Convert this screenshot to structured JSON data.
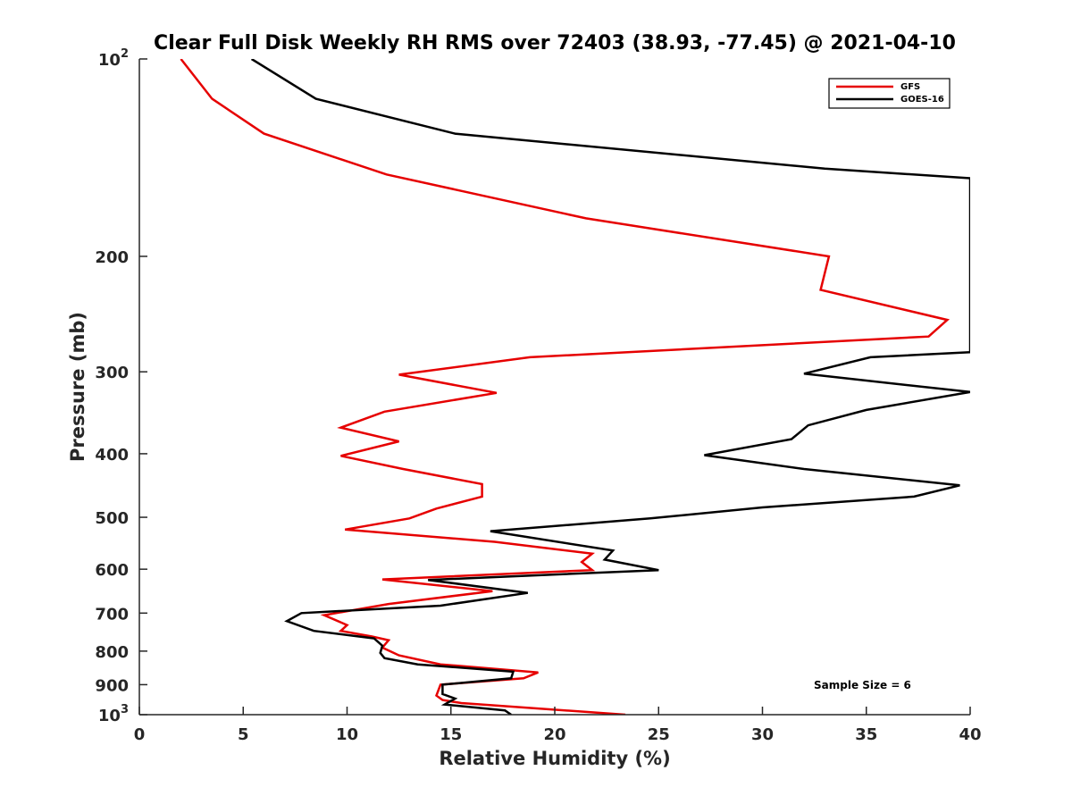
{
  "chart_data": {
    "type": "line",
    "title": "Clear Full Disk Weekly RH RMS over 72403 (38.93, -77.45) @ 2021-04-10",
    "xlabel": "Relative Humidity (%)",
    "ylabel": "Pressure (mb)",
    "xlim": [
      0,
      40
    ],
    "ylim": [
      100,
      1000
    ],
    "y_scale": "log",
    "y_reversed": true,
    "grid": false,
    "legend_position": "top-right",
    "x_ticks": [
      0,
      5,
      10,
      15,
      20,
      25,
      30,
      35,
      40
    ],
    "x_tick_labels": [
      "0",
      "5",
      "10",
      "15",
      "20",
      "25",
      "30",
      "35",
      "40"
    ],
    "y_ticks": [
      100,
      200,
      300,
      400,
      500,
      600,
      700,
      800,
      900,
      1000
    ],
    "y_tick_labels": [
      {
        "base": "10",
        "exp": "2"
      },
      {
        "base": "200",
        "exp": ""
      },
      {
        "base": "300",
        "exp": ""
      },
      {
        "base": "400",
        "exp": ""
      },
      {
        "base": "500",
        "exp": ""
      },
      {
        "base": "600",
        "exp": ""
      },
      {
        "base": "700",
        "exp": ""
      },
      {
        "base": "800",
        "exp": ""
      },
      {
        "base": "900",
        "exp": ""
      },
      {
        "base": "10",
        "exp": "3"
      }
    ],
    "annotation": "Sample Size = 6",
    "series": [
      {
        "name": "GFS",
        "color": "#e60000",
        "points": [
          {
            "x": 2.0,
            "y": 100
          },
          {
            "x": 3.5,
            "y": 115
          },
          {
            "x": 6.0,
            "y": 130
          },
          {
            "x": 11.9,
            "y": 150
          },
          {
            "x": 21.5,
            "y": 175
          },
          {
            "x": 33.2,
            "y": 200
          },
          {
            "x": 32.8,
            "y": 225
          },
          {
            "x": 38.9,
            "y": 250
          },
          {
            "x": 38.0,
            "y": 265
          },
          {
            "x": 18.8,
            "y": 285
          },
          {
            "x": 12.5,
            "y": 303
          },
          {
            "x": 17.2,
            "y": 323
          },
          {
            "x": 11.8,
            "y": 345
          },
          {
            "x": 9.7,
            "y": 365
          },
          {
            "x": 12.5,
            "y": 383
          },
          {
            "x": 9.7,
            "y": 403
          },
          {
            "x": 12.7,
            "y": 422
          },
          {
            "x": 16.5,
            "y": 445
          },
          {
            "x": 16.5,
            "y": 465
          },
          {
            "x": 14.3,
            "y": 485
          },
          {
            "x": 13.0,
            "y": 502
          },
          {
            "x": 9.9,
            "y": 522
          },
          {
            "x": 17.1,
            "y": 545
          },
          {
            "x": 21.8,
            "y": 568
          },
          {
            "x": 21.3,
            "y": 585
          },
          {
            "x": 21.8,
            "y": 602
          },
          {
            "x": 11.7,
            "y": 622
          },
          {
            "x": 17.0,
            "y": 648
          },
          {
            "x": 12.0,
            "y": 678
          },
          {
            "x": 8.9,
            "y": 705
          },
          {
            "x": 10.0,
            "y": 730
          },
          {
            "x": 9.7,
            "y": 745
          },
          {
            "x": 11.2,
            "y": 760
          },
          {
            "x": 12.0,
            "y": 770
          },
          {
            "x": 11.7,
            "y": 790
          },
          {
            "x": 12.5,
            "y": 812
          },
          {
            "x": 14.5,
            "y": 838
          },
          {
            "x": 19.2,
            "y": 862
          },
          {
            "x": 18.5,
            "y": 880
          },
          {
            "x": 14.5,
            "y": 900
          },
          {
            "x": 14.3,
            "y": 935
          },
          {
            "x": 14.6,
            "y": 950
          },
          {
            "x": 15.5,
            "y": 960
          },
          {
            "x": 23.4,
            "y": 1000
          }
        ]
      },
      {
        "name": "GOES-16",
        "color": "#000000",
        "points": [
          {
            "x": 5.4,
            "y": 100
          },
          {
            "x": 8.5,
            "y": 115
          },
          {
            "x": 15.2,
            "y": 130
          },
          {
            "x": 33.0,
            "y": 147
          },
          {
            "x": 40.0,
            "y": 152
          },
          {
            "x": 40.0,
            "y": 280
          },
          {
            "x": 35.2,
            "y": 285
          },
          {
            "x": 32.0,
            "y": 302
          },
          {
            "x": 40.0,
            "y": 322
          },
          {
            "x": 35.0,
            "y": 343
          },
          {
            "x": 32.2,
            "y": 362
          },
          {
            "x": 31.4,
            "y": 380
          },
          {
            "x": 27.2,
            "y": 402
          },
          {
            "x": 32.0,
            "y": 422
          },
          {
            "x": 39.5,
            "y": 447
          },
          {
            "x": 37.3,
            "y": 465
          },
          {
            "x": 30.0,
            "y": 483
          },
          {
            "x": 24.6,
            "y": 502
          },
          {
            "x": 16.9,
            "y": 525
          },
          {
            "x": 22.8,
            "y": 562
          },
          {
            "x": 22.4,
            "y": 580
          },
          {
            "x": 25.0,
            "y": 602
          },
          {
            "x": 13.9,
            "y": 623
          },
          {
            "x": 18.7,
            "y": 652
          },
          {
            "x": 14.5,
            "y": 682
          },
          {
            "x": 7.8,
            "y": 700
          },
          {
            "x": 7.1,
            "y": 720
          },
          {
            "x": 8.4,
            "y": 745
          },
          {
            "x": 11.3,
            "y": 765
          },
          {
            "x": 11.7,
            "y": 785
          },
          {
            "x": 11.6,
            "y": 805
          },
          {
            "x": 11.8,
            "y": 820
          },
          {
            "x": 13.4,
            "y": 838
          },
          {
            "x": 18.0,
            "y": 860
          },
          {
            "x": 17.9,
            "y": 880
          },
          {
            "x": 14.6,
            "y": 900
          },
          {
            "x": 14.6,
            "y": 930
          },
          {
            "x": 15.2,
            "y": 945
          },
          {
            "x": 14.7,
            "y": 965
          },
          {
            "x": 17.6,
            "y": 985
          },
          {
            "x": 17.9,
            "y": 1000
          }
        ]
      }
    ]
  }
}
